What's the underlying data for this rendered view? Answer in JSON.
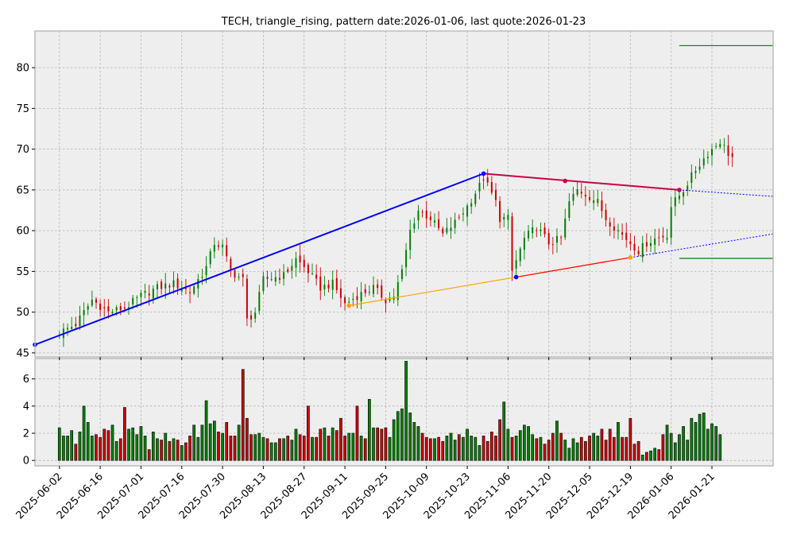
{
  "chart_data": {
    "type": "candlestick",
    "title": "TECH, triangle_rising, pattern date:2026-01-06, last quote:2026-01-23",
    "price_panel": {
      "ylim": [
        44.5,
        84.5
      ],
      "yticks": [
        45,
        50,
        55,
        60,
        65,
        70,
        75,
        80
      ]
    },
    "volume_panel": {
      "ylim": [
        -0.4,
        7.5
      ],
      "yticks": [
        0,
        2,
        4,
        6
      ]
    },
    "xlim": [
      -6,
      175
    ],
    "xticks": [
      {
        "label": "2025-06-02",
        "day": 0
      },
      {
        "label": "2025-06-16",
        "day": 10
      },
      {
        "label": "2025-07-01",
        "day": 20
      },
      {
        "label": "2025-07-16",
        "day": 30
      },
      {
        "label": "2025-07-30",
        "day": 40
      },
      {
        "label": "2025-08-13",
        "day": 50
      },
      {
        "label": "2025-08-27",
        "day": 60
      },
      {
        "label": "2025-09-11",
        "day": 70
      },
      {
        "label": "2025-09-25",
        "day": 80
      },
      {
        "label": "2025-10-09",
        "day": 90
      },
      {
        "label": "2025-10-23",
        "day": 100
      },
      {
        "label": "2025-11-06",
        "day": 110
      },
      {
        "label": "2025-11-20",
        "day": 120
      },
      {
        "label": "2025-12-05",
        "day": 130
      },
      {
        "label": "2025-12-19",
        "day": 140
      },
      {
        "label": "2026-01-06",
        "day": 150
      },
      {
        "label": "2026-01-21",
        "day": 160
      }
    ],
    "close_anchors": [
      [
        0,
        47.5
      ],
      [
        4,
        48.5
      ],
      [
        8,
        51.5
      ],
      [
        12,
        50.0
      ],
      [
        16,
        50.5
      ],
      [
        20,
        52.0
      ],
      [
        24,
        53.0
      ],
      [
        28,
        53.5
      ],
      [
        32,
        52.5
      ],
      [
        36,
        55.5
      ],
      [
        38,
        58.5
      ],
      [
        40,
        58.0
      ],
      [
        42,
        55.0
      ],
      [
        45,
        54.0
      ],
      [
        46,
        49.0
      ],
      [
        48,
        50.0
      ],
      [
        50,
        54.0
      ],
      [
        55,
        54.5
      ],
      [
        58,
        56.5
      ],
      [
        61,
        55.0
      ],
      [
        64,
        53.0
      ],
      [
        67,
        53.5
      ],
      [
        70,
        51.0
      ],
      [
        73,
        52.0
      ],
      [
        77,
        53.0
      ],
      [
        80,
        51.5
      ],
      [
        82,
        52.0
      ],
      [
        84,
        55.0
      ],
      [
        86,
        60.0
      ],
      [
        88,
        62.5
      ],
      [
        91,
        61.5
      ],
      [
        94,
        59.5
      ],
      [
        97,
        61.0
      ],
      [
        100,
        63.0
      ],
      [
        103,
        65.5
      ],
      [
        104,
        66.5
      ],
      [
        107,
        63.5
      ],
      [
        108,
        61.5
      ],
      [
        110,
        61.5
      ],
      [
        111,
        55.0
      ],
      [
        114,
        59.0
      ],
      [
        117,
        60.5
      ],
      [
        120,
        58.5
      ],
      [
        123,
        59.0
      ],
      [
        125,
        63.5
      ],
      [
        127,
        65.0
      ],
      [
        129,
        64.5
      ],
      [
        132,
        63.5
      ],
      [
        134,
        61.5
      ],
      [
        137,
        60.0
      ],
      [
        140,
        58.5
      ],
      [
        142,
        57.5
      ],
      [
        144,
        58.5
      ],
      [
        146,
        59.0
      ],
      [
        149,
        59.5
      ],
      [
        150,
        63.0
      ],
      [
        153,
        65.0
      ],
      [
        156,
        67.5
      ],
      [
        159,
        69.5
      ],
      [
        162,
        71.0
      ],
      [
        164,
        69.5
      ],
      [
        165,
        69.0
      ]
    ],
    "last_day": 165,
    "volume": [
      2.4,
      1.8,
      1.8,
      2.2,
      1.2,
      2.1,
      4.0,
      2.8,
      1.8,
      1.9,
      1.7,
      2.3,
      2.2,
      2.6,
      1.4,
      1.6,
      3.9,
      2.3,
      2.4,
      1.9,
      2.5,
      1.8,
      0.8,
      2.1,
      1.6,
      1.5,
      2.0,
      1.4,
      1.6,
      1.5,
      1.1,
      1.3,
      1.8,
      2.6,
      1.7,
      2.6,
      4.4,
      2.7,
      2.9,
      2.1,
      2.0,
      2.8,
      1.8,
      1.8,
      2.6,
      6.7,
      3.1,
      1.9,
      1.9,
      2.0,
      1.7,
      1.6,
      1.3,
      1.3,
      1.6,
      1.6,
      1.8,
      1.5,
      2.3,
      1.9,
      1.8,
      4.0,
      1.7,
      1.7,
      2.3,
      2.4,
      1.8,
      2.4,
      2.2,
      3.1,
      1.8,
      2.0,
      2.0,
      4.0,
      1.8,
      1.6,
      4.5,
      2.4,
      2.4,
      2.3,
      2.4,
      1.7,
      3.0,
      3.6,
      3.8,
      7.3,
      3.5,
      2.8,
      2.5,
      2.0,
      1.7,
      1.6,
      1.6,
      1.7,
      1.4,
      1.8,
      2.0,
      1.5,
      1.9,
      1.7,
      2.3,
      1.8,
      1.7,
      1.1,
      1.8,
      1.4,
      2.1,
      1.8,
      3.0,
      4.3,
      2.3,
      1.7,
      1.8,
      2.2,
      2.6,
      2.5,
      1.9,
      1.6,
      1.7,
      1.2,
      1.5,
      2.0,
      2.9,
      2.0,
      1.5,
      0.9,
      1.6,
      1.3,
      1.7,
      1.4,
      1.8,
      2.0,
      1.8,
      2.3,
      1.5,
      2.3,
      1.7,
      2.8,
      1.7,
      1.7,
      3.1,
      1.2,
      1.4,
      0.4,
      0.6,
      0.7,
      0.9,
      0.8,
      1.9,
      2.6,
      2.0,
      1.3,
      1.9,
      2.5,
      1.5,
      3.1,
      2.8,
      3.4,
      3.5,
      2.3,
      2.7,
      2.5,
      1.9
    ],
    "lines": [
      {
        "color": "#0000ff",
        "width": 2,
        "dash": false,
        "points": [
          [
            -6,
            46.0
          ],
          [
            104,
            67.0
          ]
        ]
      },
      {
        "color": "#cc0044",
        "width": 2,
        "dash": false,
        "points": [
          [
            104,
            67.0
          ],
          [
            152,
            65.0
          ]
        ]
      },
      {
        "color": "#0000ff",
        "width": 1,
        "dash": true,
        "points": [
          [
            152,
            65.0
          ],
          [
            175,
            64.2
          ]
        ]
      },
      {
        "color": "#ffa500",
        "width": 1.2,
        "dash": false,
        "points": [
          [
            71,
            50.8
          ],
          [
            112,
            54.3
          ],
          [
            140,
            56.7
          ]
        ]
      },
      {
        "color": "#ff0000",
        "width": 1.2,
        "dash": false,
        "points": [
          [
            112,
            54.3
          ],
          [
            140,
            56.7
          ]
        ]
      },
      {
        "color": "#0000ff",
        "width": 1,
        "dash": true,
        "points": [
          [
            140,
            56.7
          ],
          [
            175,
            59.6
          ]
        ]
      },
      {
        "color": "#008000",
        "width": 1.2,
        "dash": false,
        "points": [
          [
            152,
            82.7
          ],
          [
            175,
            82.7
          ]
        ]
      },
      {
        "color": "#008000",
        "width": 1.2,
        "dash": false,
        "points": [
          [
            152,
            56.6
          ],
          [
            175,
            56.6
          ]
        ]
      }
    ],
    "markers": [
      {
        "color": "#0000ff",
        "point": [
          -6,
          46.0
        ]
      },
      {
        "color": "#0000ff",
        "point": [
          104,
          67.0
        ]
      },
      {
        "color": "#cc0044",
        "point": [
          124,
          66.1
        ]
      },
      {
        "color": "#cc0044",
        "point": [
          152,
          65.0
        ]
      },
      {
        "color": "#ffa500",
        "point": [
          71,
          50.8
        ]
      },
      {
        "color": "#0000ff",
        "point": [
          112,
          54.3
        ]
      },
      {
        "color": "#ffa500",
        "point": [
          140,
          56.7
        ]
      }
    ],
    "colors": {
      "up": "#008000",
      "down": "#cc0000",
      "panel_bg": "#eeeeee",
      "grid": "#b0b0b0"
    }
  }
}
